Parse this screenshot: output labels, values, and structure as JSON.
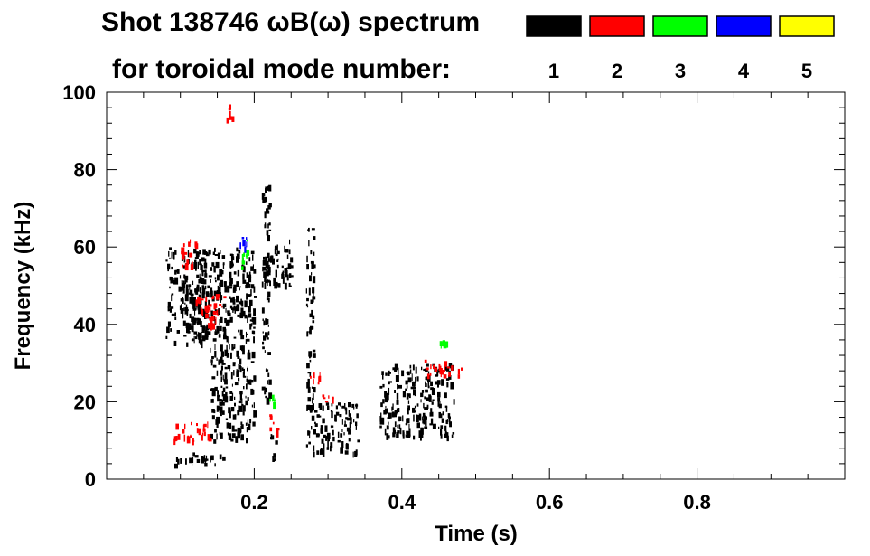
{
  "chart_data": {
    "type": "heatmap",
    "title": "Shot 138746 ωB(ω) spectrum",
    "subtitle": "for toroidal mode number:",
    "xlabel": "Time (s)",
    "ylabel": "Frequency (kHz)",
    "xlim": [
      0.0,
      1.0
    ],
    "ylim": [
      0,
      100
    ],
    "xticks": [
      0.2,
      0.4,
      0.6,
      0.8
    ],
    "yticks": [
      0,
      20,
      40,
      60,
      80,
      100
    ],
    "grid": false,
    "legend": [
      {
        "label": "1",
        "color": "#000000"
      },
      {
        "label": "2",
        "color": "#ff0000"
      },
      {
        "label": "3",
        "color": "#00ff00"
      },
      {
        "label": "4",
        "color": "#0000ff"
      },
      {
        "label": "5",
        "color": "#ffff00"
      }
    ],
    "regions": [
      {
        "mode": 1,
        "t": [
          0.08,
          0.14
        ],
        "f": [
          35,
          60
        ]
      },
      {
        "mode": 1,
        "t": [
          0.1,
          0.13
        ],
        "f": [
          40,
          52
        ]
      },
      {
        "mode": 1,
        "t": [
          0.14,
          0.2
        ],
        "f": [
          10,
          60
        ]
      },
      {
        "mode": 1,
        "t": [
          0.21,
          0.25
        ],
        "f": [
          50,
          62
        ]
      },
      {
        "mode": 1,
        "t": [
          0.21,
          0.22
        ],
        "f": [
          20,
          76
        ]
      },
      {
        "mode": 1,
        "t": [
          0.27,
          0.34
        ],
        "f": [
          7,
          20
        ]
      },
      {
        "mode": 1,
        "t": [
          0.27,
          0.28
        ],
        "f": [
          18,
          65
        ]
      },
      {
        "mode": 1,
        "t": [
          0.37,
          0.47
        ],
        "f": [
          11,
          30
        ]
      },
      {
        "mode": 1,
        "t": [
          0.09,
          0.16
        ],
        "f": [
          4,
          7
        ]
      },
      {
        "mode": 1,
        "t": [
          0.22,
          0.23
        ],
        "f": [
          5,
          12
        ]
      },
      {
        "mode": 2,
        "t": [
          0.09,
          0.14
        ],
        "f": [
          10,
          15
        ]
      },
      {
        "mode": 2,
        "t": [
          0.1,
          0.12
        ],
        "f": [
          55,
          62
        ]
      },
      {
        "mode": 2,
        "t": [
          0.12,
          0.16
        ],
        "f": [
          40,
          48
        ]
      },
      {
        "mode": 2,
        "t": [
          0.16,
          0.17
        ],
        "f": [
          93,
          97
        ]
      },
      {
        "mode": 2,
        "t": [
          0.27,
          0.29
        ],
        "f": [
          25,
          28
        ]
      },
      {
        "mode": 2,
        "t": [
          0.29,
          0.31
        ],
        "f": [
          20,
          22
        ]
      },
      {
        "mode": 2,
        "t": [
          0.43,
          0.48
        ],
        "f": [
          27,
          31
        ]
      },
      {
        "mode": 2,
        "t": [
          0.22,
          0.23
        ],
        "f": [
          12,
          17
        ]
      },
      {
        "mode": 3,
        "t": [
          0.18,
          0.19
        ],
        "f": [
          55,
          62
        ]
      },
      {
        "mode": 3,
        "t": [
          0.22,
          0.23
        ],
        "f": [
          19,
          22
        ]
      },
      {
        "mode": 3,
        "t": [
          0.45,
          0.46
        ],
        "f": [
          34,
          36
        ]
      },
      {
        "mode": 4,
        "t": [
          0.18,
          0.19
        ],
        "f": [
          60,
          63
        ]
      }
    ]
  }
}
